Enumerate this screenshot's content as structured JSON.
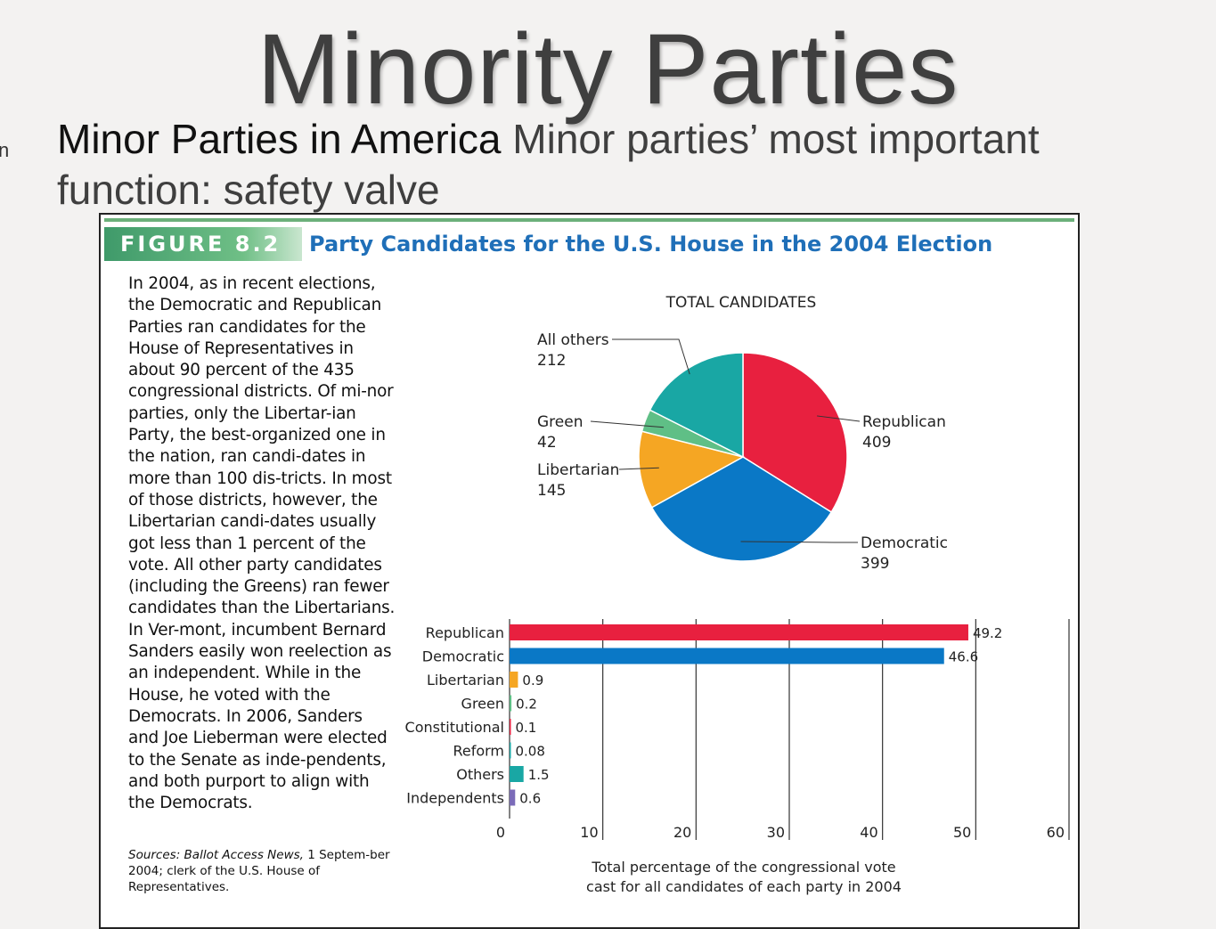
{
  "slide": {
    "title": "Minority Parties",
    "bullet_fragment": "n",
    "subtitle_strong": "Minor Parties in America",
    "subtitle_rest": "  Minor parties’ most important function: safety valve"
  },
  "figure": {
    "label": "FIGURE 8.2",
    "title": "Party Candidates for the U.S. House in the 2004 Election",
    "caption": "In 2004, as in recent elections, the Democratic and Republican Parties ran candidates for the House of Representatives in about 90 percent of the 435 congressional districts. Of mi-nor parties, only the Libertar-ian Party, the best-organized one in the nation, ran candi-dates in more than 100 dis-tricts. In most of those districts, however, the Libertarian candi-dates usually got less than 1 percent of the vote. All other party candidates (including the Greens) ran fewer candidates than the Libertarians. In Ver-mont, incumbent Bernard Sanders easily won reelection as an independent. While in the House, he voted with the Democrats. In 2006, Sanders and Joe Lieberman were elected to the Senate as inde-pendents, and both purport to align with the Democrats.",
    "sources_italic": "Sources: Ballot Access News,",
    "sources_rest": " 1 Septem-ber 2004; clerk of the U.S. House of Representatives."
  },
  "chart_data": [
    {
      "type": "pie",
      "title": "TOTAL CANDIDATES",
      "categories": [
        "Republican",
        "Democratic",
        "Libertarian",
        "Green",
        "All others"
      ],
      "values": [
        409,
        399,
        145,
        42,
        212
      ],
      "colors": [
        "#e8203f",
        "#0a78c6",
        "#f5a623",
        "#5fbf86",
        "#19a7a4"
      ]
    },
    {
      "type": "bar",
      "orientation": "horizontal",
      "categories": [
        "Republican",
        "Democratic",
        "Libertarian",
        "Green",
        "Constitutional",
        "Reform",
        "Others",
        "Independents"
      ],
      "values": [
        49.2,
        46.6,
        0.9,
        0.2,
        0.1,
        0.08,
        1.5,
        0.6
      ],
      "value_labels": [
        "49.2",
        "46.6",
        "0.9",
        "0.2",
        "0.1",
        "0.08",
        "1.5",
        "0.6"
      ],
      "colors": [
        "#e8203f",
        "#0a78c6",
        "#f5a623",
        "#5fbf86",
        "#e8203f",
        "#19a7a4",
        "#19a7a4",
        "#7b6bb8"
      ],
      "xlim": [
        0,
        60
      ],
      "xticks": [
        "0",
        "10",
        "20",
        "30",
        "40",
        "50",
        "60"
      ],
      "xlabel_line1": "Total percentage of the congressional vote",
      "xlabel_line2": "cast for all candidates of each party in 2004"
    }
  ]
}
